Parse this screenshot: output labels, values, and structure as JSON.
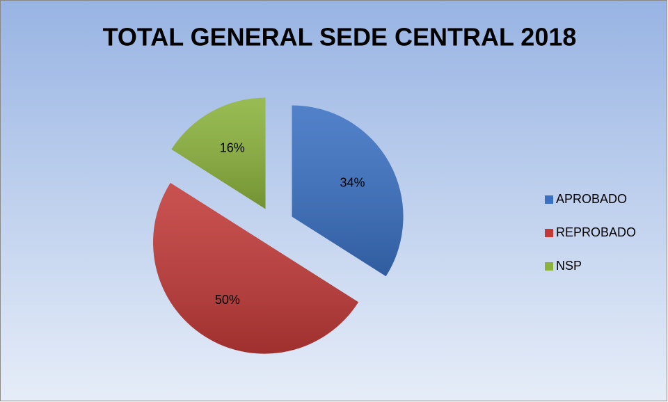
{
  "chart_data": {
    "type": "pie",
    "title": "TOTAL GENERAL SEDE CENTRAL  2018",
    "categories": [
      "APROBADO",
      "REPROBADO",
      "NSP"
    ],
    "values": [
      34,
      50,
      16
    ],
    "value_labels": [
      "34%",
      "50%",
      "16%"
    ],
    "colors": [
      "#3a70c2",
      "#c13a38",
      "#8bb23c"
    ],
    "legend": "right"
  }
}
